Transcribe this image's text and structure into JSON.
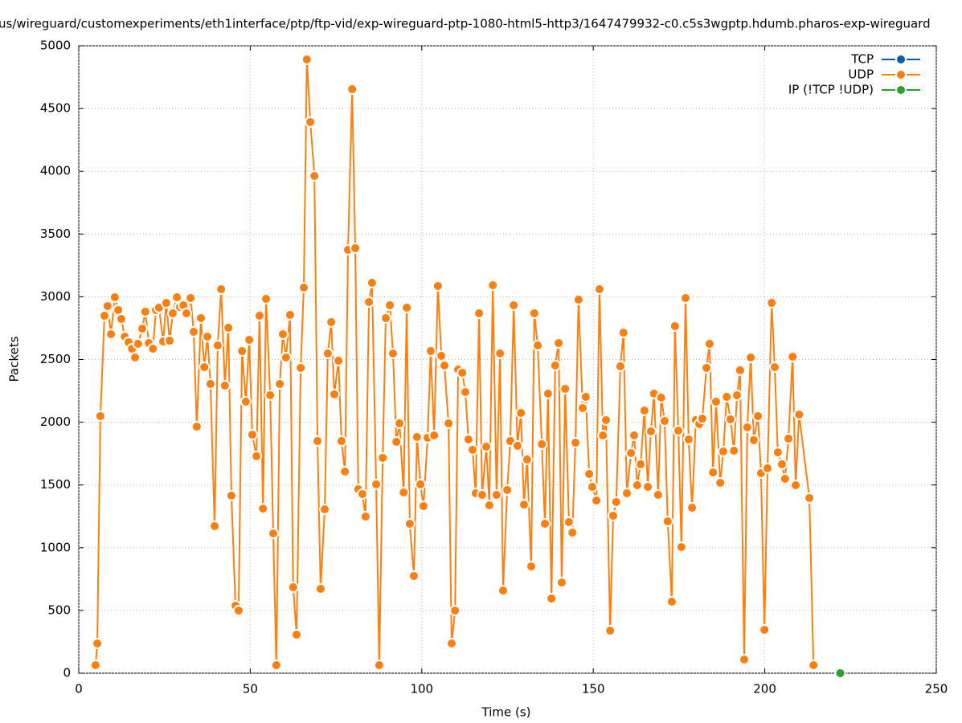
{
  "chart_data": {
    "type": "line",
    "title": "us/wireguard/customexperiments/eth1interface/ptp/ftp-vid/exp-wireguard-ptp-1080-html5-http3/1647479932-c0.c5s3wgptp.hdumb.pharos-exp-wireguard",
    "x_label": "Time (s)",
    "y_label": "Packets",
    "xlim": [
      0,
      250
    ],
    "xticks": [
      0,
      50,
      100,
      150,
      200,
      250
    ],
    "ylim": [
      0,
      5000
    ],
    "yticks": [
      0,
      500,
      1000,
      1500,
      2000,
      2500,
      3000,
      3500,
      4000,
      4500,
      5000
    ],
    "grid": true,
    "legend": "top-right",
    "series": [
      {
        "name": "TCP",
        "color": "#0060ad",
        "x": [],
        "values": []
      },
      {
        "name": "UDP",
        "color": "#ff7f0e",
        "x": [
          4.9,
          5.4,
          6.3,
          7.5,
          8.4,
          9.4,
          10.5,
          11.5,
          12.4,
          13.4,
          14.5,
          15.5,
          16.4,
          17.3,
          18.5,
          19.4,
          20.4,
          21.6,
          22.5,
          23.4,
          24.6,
          25.5,
          26.5,
          27.4,
          28.6,
          29.5,
          30.5,
          31.4,
          32.6,
          33.5,
          34.4,
          35.6,
          36.6,
          37.5,
          38.4,
          39.6,
          40.5,
          41.5,
          42.6,
          43.6,
          44.5,
          45.7,
          46.6,
          47.6,
          48.7,
          49.7,
          50.6,
          51.8,
          52.7,
          53.7,
          54.6,
          55.8,
          56.7,
          57.6,
          58.6,
          59.5,
          60.4,
          61.6,
          62.5,
          63.5,
          64.7,
          65.6,
          66.5,
          67.5,
          68.7,
          69.6,
          70.5,
          71.7,
          72.6,
          73.6,
          74.5,
          75.7,
          76.6,
          77.6,
          78.5,
          79.7,
          80.6,
          81.5,
          82.7,
          83.6,
          84.6,
          85.5,
          86.7,
          87.6,
          88.6,
          89.5,
          90.7,
          91.6,
          92.6,
          93.5,
          94.7,
          95.6,
          96.5,
          97.7,
          98.6,
          99.6,
          100.5,
          101.7,
          102.6,
          103.6,
          104.7,
          105.7,
          106.6,
          107.8,
          108.7,
          109.7,
          110.6,
          111.8,
          112.7,
          113.6,
          114.8,
          115.7,
          116.7,
          117.6,
          118.8,
          119.7,
          120.7,
          121.8,
          122.8,
          123.7,
          124.9,
          125.8,
          126.8,
          127.9,
          128.9,
          129.8,
          130.7,
          131.9,
          132.8,
          133.8,
          135.0,
          135.9,
          136.8,
          137.8,
          138.9,
          139.9,
          140.8,
          141.8,
          142.9,
          143.9,
          144.8,
          145.7,
          146.9,
          147.8,
          148.8,
          149.7,
          150.9,
          151.8,
          152.8,
          153.7,
          154.9,
          155.8,
          156.7,
          157.9,
          158.8,
          159.8,
          161.0,
          161.9,
          162.8,
          163.8,
          164.9,
          165.9,
          166.8,
          167.7,
          168.9,
          169.8,
          170.8,
          171.7,
          172.9,
          173.8,
          174.8,
          175.7,
          176.9,
          177.8,
          178.8,
          179.9,
          180.9,
          181.8,
          183.0,
          183.9,
          184.9,
          185.8,
          187.0,
          187.9,
          188.9,
          190.0,
          191.0,
          191.9,
          192.8,
          194.0,
          194.9,
          195.9,
          196.8,
          198.0,
          198.9,
          199.9,
          200.8,
          202.0,
          202.9,
          203.8,
          205.0,
          205.9,
          206.9,
          208.1,
          209.0,
          210.0,
          213.0,
          214.2
        ],
        "values": [
          64,
          237,
          2049,
          2849,
          2926,
          2702,
          2996,
          2894,
          2823,
          2682,
          2638,
          2586,
          2516,
          2625,
          2746,
          2881,
          2631,
          2586,
          2894,
          2913,
          2644,
          2951,
          2650,
          2868,
          2996,
          2919,
          2932,
          2868,
          2990,
          2721,
          1965,
          2830,
          2439,
          2682,
          2305,
          1172,
          2612,
          3060,
          2292,
          2753,
          1415,
          538,
          499,
          2567,
          2164,
          2657,
          1901,
          1729,
          2849,
          1312,
          2983,
          2215,
          1114,
          64,
          2305,
          2702,
          2516,
          2855,
          685,
          307,
          2433,
          3073,
          4891,
          4392,
          3963,
          1850,
          672,
          1306,
          2548,
          2798,
          2222,
          2490,
          1850,
          1607,
          3374,
          4654,
          3387,
          1466,
          1428,
          1248,
          2958,
          3111,
          1505,
          64,
          1716,
          2830,
          2932,
          2548,
          1844,
          1991,
          1441,
          2913,
          1191,
          775,
          1882,
          1505,
          1332,
          1876,
          2567,
          1895,
          3086,
          2529,
          2452,
          1991,
          237,
          499,
          2420,
          2394,
          2241,
          1863,
          1780,
          1434,
          2868,
          1421,
          1805,
          1338,
          3092,
          1421,
          2548,
          659,
          1460,
          1850,
          2932,
          1812,
          2074,
          1344,
          1703,
          851,
          2868,
          2612,
          1825,
          1191,
          2228,
          595,
          2452,
          2631,
          723,
          2266,
          1204,
          1120,
          1837,
          2977,
          2113,
          2202,
          1588,
          1485,
          1376,
          3060,
          1895,
          2017,
          339,
          1255,
          1364,
          2446,
          2714,
          1434,
          1754,
          1895,
          1498,
          1665,
          2093,
          1485,
          1927,
          2228,
          1421,
          2196,
          2010,
          1210,
          570,
          2766,
          1933,
          1005,
          2990,
          1863,
          1319,
          2017,
          1985,
          2029,
          2433,
          2625,
          1600,
          2164,
          1517,
          1767,
          2202,
          2023,
          1773,
          2215,
          2414,
          109,
          1959,
          2516,
          1857,
          2049,
          1594,
          346,
          1633,
          2951,
          2439,
          1760,
          1665,
          1549,
          1869,
          2522,
          1498,
          2061,
          1396,
          64
        ]
      },
      {
        "name": "IP (!TCP  !UDP)",
        "color": "#2ca02c",
        "x": [
          222
        ],
        "values": [
          0
        ]
      }
    ]
  }
}
